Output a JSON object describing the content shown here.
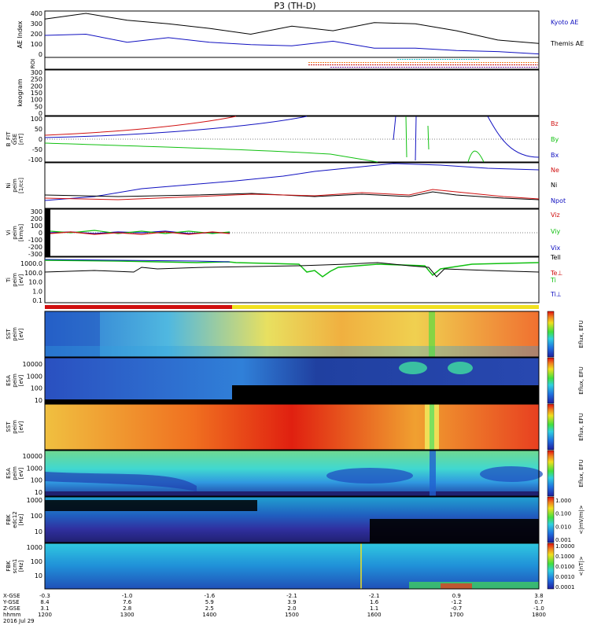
{
  "title": "P3 (TH-D)",
  "colors": {
    "frame": "#000000",
    "red": "#d01010",
    "green": "#10c010",
    "blue": "#1010c0",
    "cyan": "#20c8d0",
    "yellow": "#f0e020"
  },
  "panels": {
    "ae": {
      "ylabel": "AE Index",
      "ticks": [
        "400",
        "300",
        "200",
        "100",
        "0"
      ],
      "legend": [
        {
          "label": "Kyoto AE",
          "color": "#1010c0"
        },
        {
          "label": "Themis AE",
          "color": "#000000"
        }
      ]
    },
    "roi": {
      "ylabel": "ROI"
    },
    "keogram": {
      "ylabel": "keogram",
      "ticks": [
        "300",
        "250",
        "200",
        "150",
        "100",
        "50",
        "0"
      ]
    },
    "bfit": {
      "ylabel": [
        "B_FIT",
        "GSE",
        "[nT]"
      ],
      "ticks": [
        "100",
        "50",
        "0",
        "-50",
        "-100"
      ],
      "legend": [
        {
          "label": "Bz",
          "color": "#d01010"
        },
        {
          "label": "By",
          "color": "#10c010"
        },
        {
          "label": "Bx",
          "color": "#1010c0"
        }
      ]
    },
    "density": {
      "ylabel": [
        "Ni",
        "peim",
        "[1/cc]"
      ],
      "legend": [
        {
          "label": "Ne",
          "color": "#d01010"
        },
        {
          "label": "Ni",
          "color": "#000000"
        },
        {
          "label": "Npot",
          "color": "#1010c0"
        }
      ]
    },
    "velocity": {
      "ylabel": [
        "Vi",
        "peim",
        "[km/s]"
      ],
      "ticks": [
        "300",
        "200",
        "100",
        "0",
        "-100",
        "-200",
        "-300"
      ],
      "legend": [
        {
          "label": "Viz",
          "color": "#d01010"
        },
        {
          "label": "Viy",
          "color": "#10c010"
        },
        {
          "label": "Vix",
          "color": "#1010c0"
        }
      ]
    },
    "temperature": {
      "ylabel": [
        "Ti",
        "peim",
        "[eV]"
      ],
      "ticks": [
        "1000.0",
        "100.0",
        "10.0",
        "1.0",
        "0.1"
      ],
      "legend": [
        {
          "label": "Tell",
          "color": "#000000"
        },
        {
          "label": "Te⊥",
          "color": "#d01010"
        },
        {
          "label": "Ti",
          "color": "#10c010"
        },
        {
          "label": "Ti⊥",
          "color": "#1010c0"
        }
      ]
    },
    "spec1": {
      "ylabel": [
        "SST",
        "peim",
        "[eV]"
      ]
    },
    "spec2": {
      "ylabel": [
        "ESA",
        "peim",
        "[eV]"
      ],
      "ticks": [
        "10000",
        "1000",
        "100",
        "10"
      ]
    },
    "spec3": {
      "ylabel": [
        "SST",
        "peim",
        "[eV]"
      ]
    },
    "spec4": {
      "ylabel": [
        "ESA",
        "peim",
        "[eV]"
      ],
      "ticks": [
        "10000",
        "1000",
        "100",
        "10"
      ]
    },
    "fbk1": {
      "ylabel": [
        "FBK",
        "edc12",
        "[Hz]"
      ],
      "ticks": [
        "1000",
        "100",
        "10"
      ]
    },
    "fbk2": {
      "ylabel": [
        "FBK",
        "scm1",
        "[Hz]"
      ],
      "ticks": [
        "1000",
        "100",
        "10"
      ]
    }
  },
  "colorbars": {
    "eflux_label": "Eflux, EFU",
    "fbk1_label": "<|mV/m|>",
    "fbk1_ticks": [
      "1.000",
      "0.100",
      "0.010",
      "0.001"
    ],
    "fbk2_label": "<|nT|>",
    "fbk2_ticks": [
      "1.0000",
      "0.1000",
      "0.0100",
      "0.0010",
      "0.0001"
    ]
  },
  "time_axis": {
    "row_labels": [
      "X-GSE",
      "Y-GSE",
      "Z-GSE",
      "hhmm",
      "2016 Jul 29"
    ],
    "columns": [
      {
        "x": "-0.3",
        "y": "8.4",
        "z": "3.1",
        "t": "1200"
      },
      {
        "x": "-1.0",
        "y": "7.6",
        "z": "2.8",
        "t": "1300"
      },
      {
        "x": "-1.6",
        "y": "5.9",
        "z": "2.5",
        "t": "1400"
      },
      {
        "x": "-2.1",
        "y": "3.9",
        "z": "2.0",
        "t": "1500"
      },
      {
        "x": "-2.1",
        "y": "1.6",
        "z": "1.1",
        "t": "1600"
      },
      {
        "x": "0.9",
        "y": "-1.2",
        "z": "-0.7",
        "t": "1700"
      },
      {
        "x": "3.8",
        "y": "0.7",
        "z": "-1.0",
        "t": "1800"
      }
    ]
  },
  "chart_data": {
    "type": "line",
    "title": "P3 (TH-D)",
    "xlabel": "hhmm",
    "x_ticks": [
      "1200",
      "1300",
      "1400",
      "1500",
      "1600",
      "1700",
      "1800"
    ],
    "series": [
      {
        "name": "Themis AE",
        "values": [
          330,
          380,
          320,
          290,
          250,
          200,
          270,
          230,
          300,
          290,
          230,
          150,
          120
        ]
      },
      {
        "name": "Kyoto AE",
        "values": [
          190,
          200,
          130,
          170,
          130,
          110,
          100,
          140,
          80,
          80,
          60,
          50,
          30
        ]
      }
    ],
    "ylim": [
      0,
      400
    ]
  }
}
